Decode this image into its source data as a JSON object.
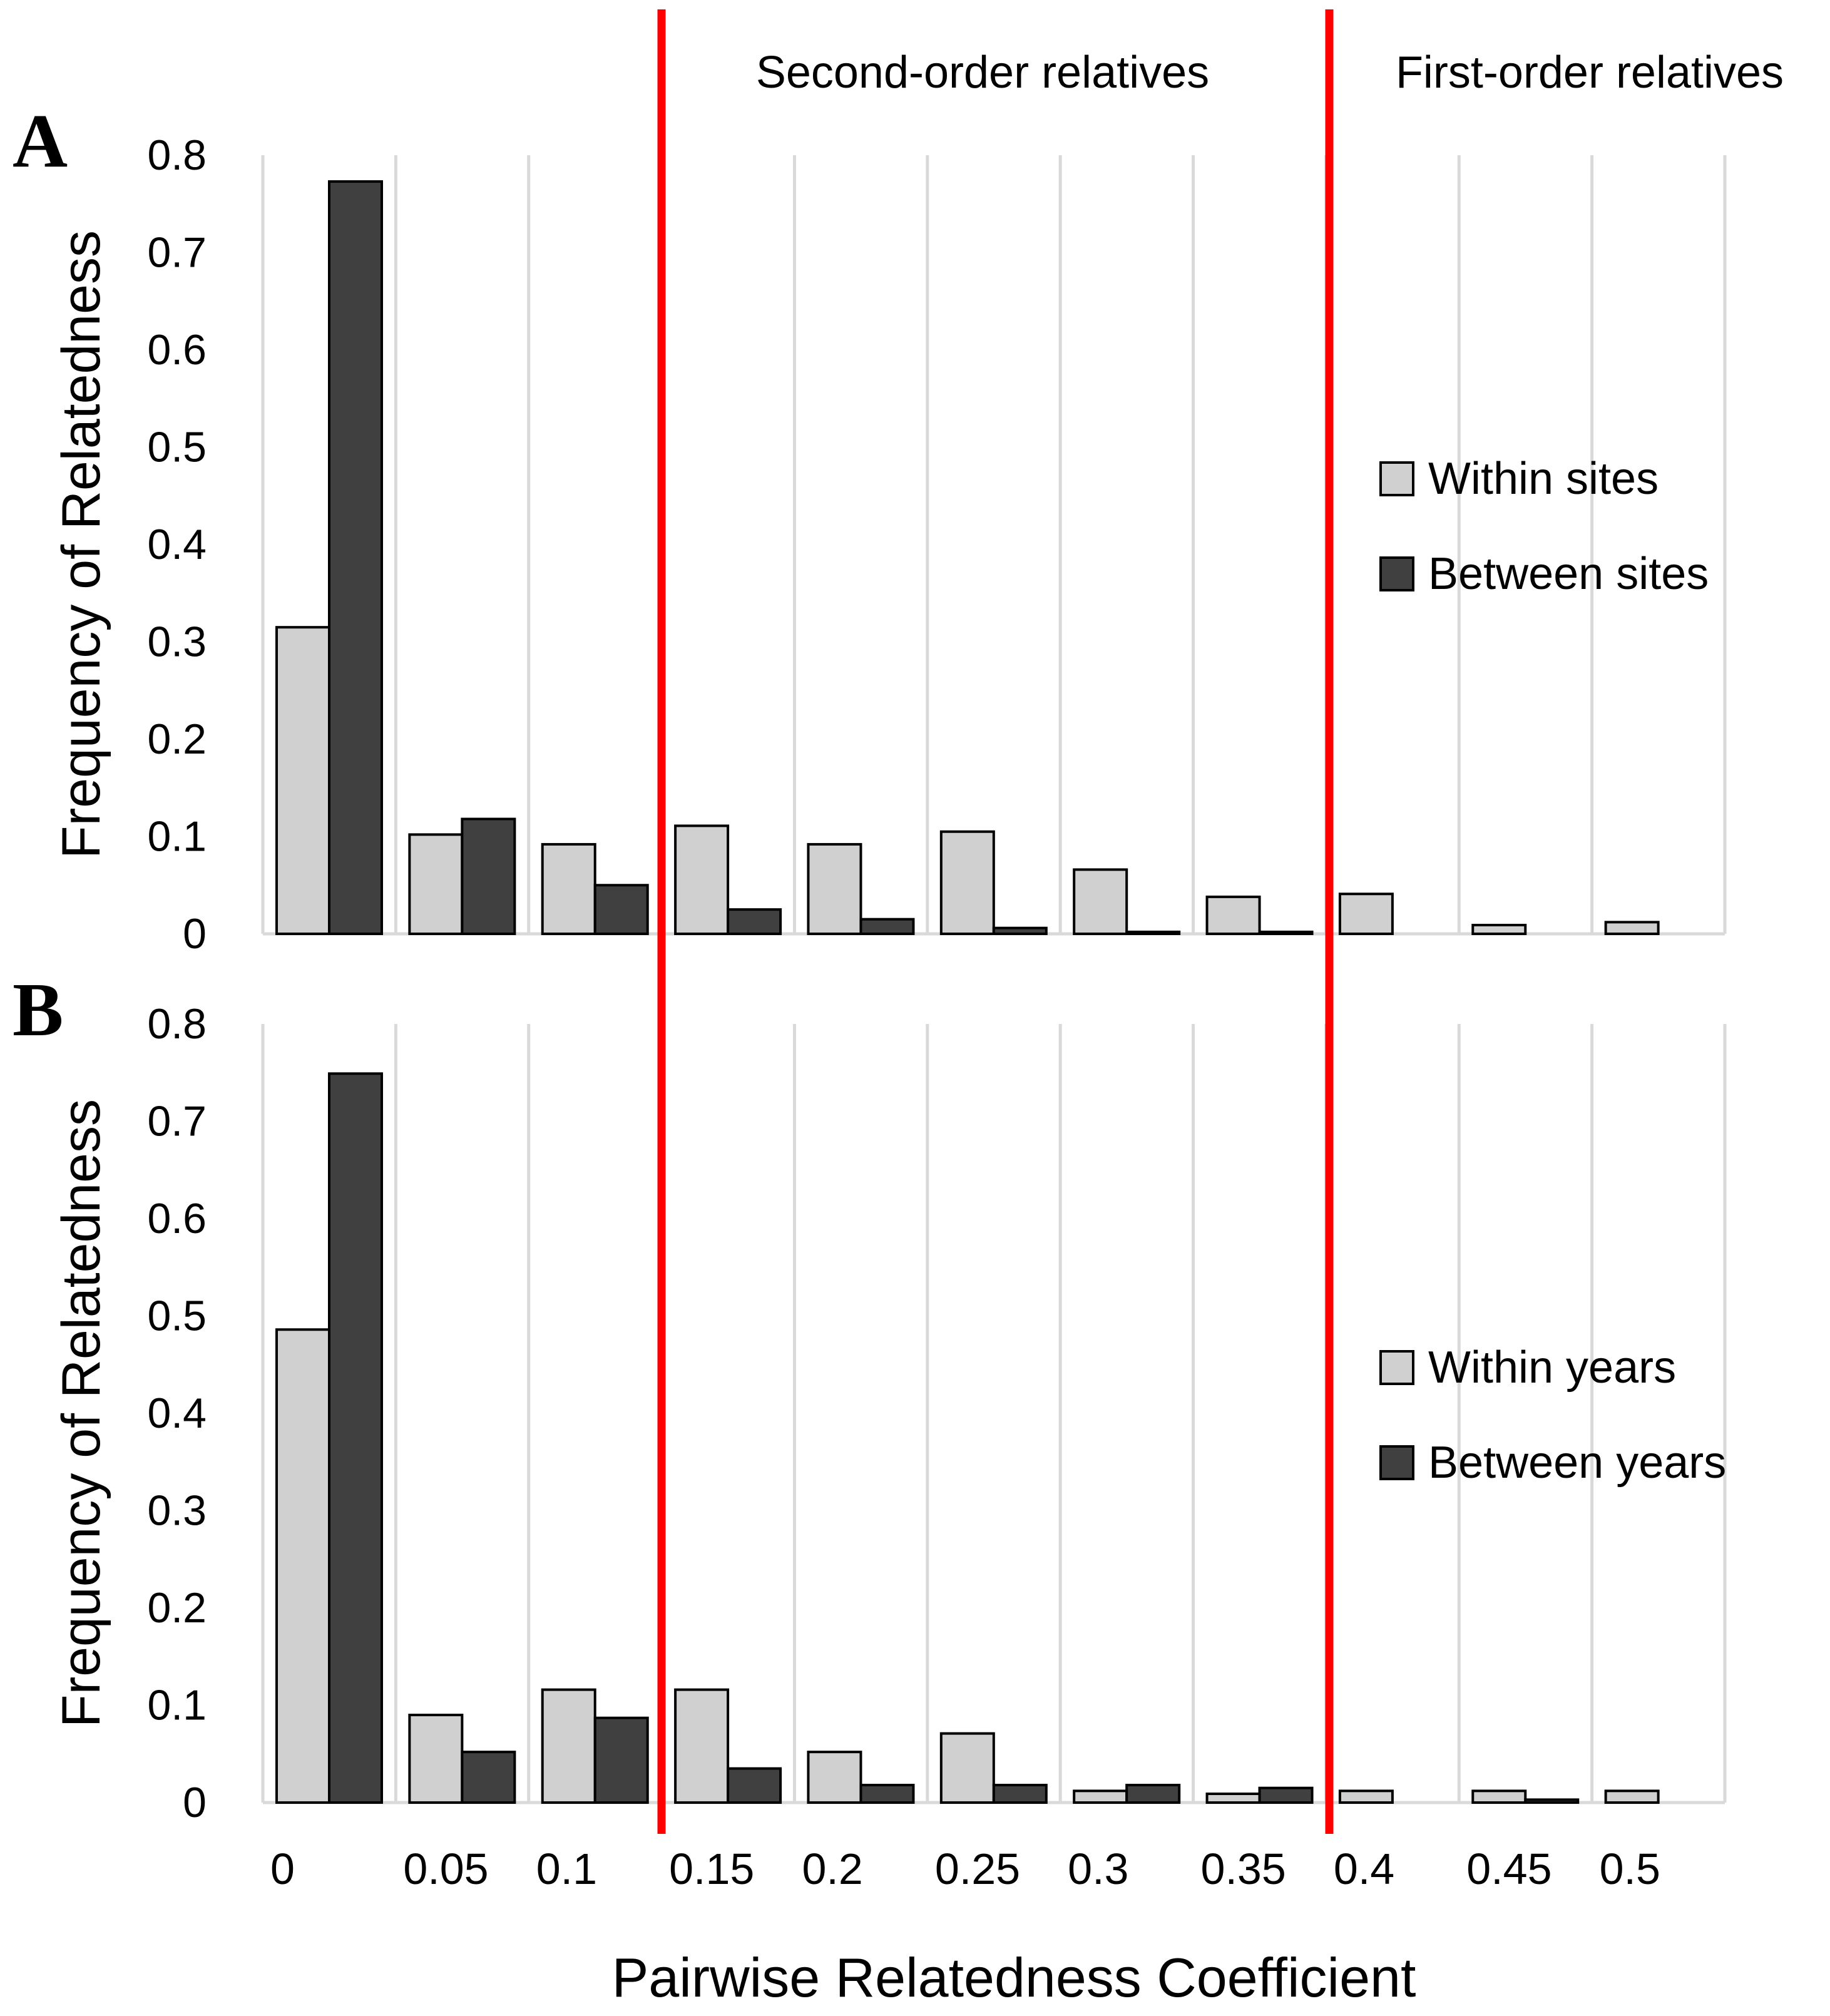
{
  "chart_data": {
    "type": "bar",
    "x_categories": [
      "0",
      "0.05",
      "0.1",
      "0.15",
      "0.2",
      "0.25",
      "0.3",
      "0.35",
      "0.4",
      "0.45",
      "0.5"
    ],
    "xlabel": "Pairwise Relatedness Coefficient",
    "thresholds": [
      {
        "label": "Second-order relatives",
        "x": 0.15
      },
      {
        "label": "First-order relatives",
        "x": 0.4
      }
    ],
    "panels": [
      {
        "panel_label": "A",
        "ylabel": "Frequency of Relatedness",
        "ylim": [
          0,
          0.8
        ],
        "yticks": [
          "0",
          "0.1",
          "0.2",
          "0.3",
          "0.4",
          "0.5",
          "0.6",
          "0.7",
          "0.8"
        ],
        "series": [
          {
            "name": "Within sites",
            "color": "#d0d0d0",
            "values": [
              0.315,
              0.102,
              0.092,
              0.111,
              0.092,
              0.105,
              0.066,
              0.038,
              0.041,
              0.009,
              0.012
            ]
          },
          {
            "name": "Between sites",
            "color": "#404040",
            "values": [
              0.773,
              0.118,
              0.05,
              0.025,
              0.015,
              0.006,
              0.002,
              0.002,
              0,
              0,
              0
            ]
          }
        ]
      },
      {
        "panel_label": "B",
        "ylabel": "Frequency of Relatedness",
        "ylim": [
          0,
          0.8
        ],
        "yticks": [
          "0",
          "0.1",
          "0.2",
          "0.3",
          "0.4",
          "0.5",
          "0.6",
          "0.7",
          "0.8"
        ],
        "series": [
          {
            "name": "Within years",
            "color": "#d0d0d0",
            "values": [
              0.486,
              0.09,
              0.116,
              0.116,
              0.052,
              0.071,
              0.012,
              0.009,
              0.012,
              0.012,
              0.012
            ]
          },
          {
            "name": "Between years",
            "color": "#404040",
            "values": [
              0.749,
              0.052,
              0.087,
              0.035,
              0.018,
              0.018,
              0.018,
              0.015,
              0,
              0.003,
              0
            ]
          }
        ]
      }
    ]
  }
}
